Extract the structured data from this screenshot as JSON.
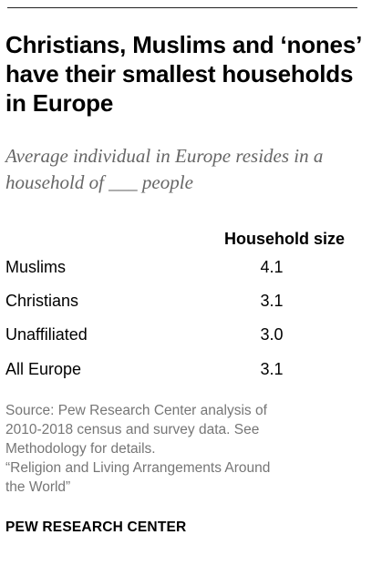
{
  "title": "Christians, Muslims and ‘nones’ have their smallest households in Europe",
  "subtitle": "Average individual in Europe resides in a household of ___ people",
  "chart_data": {
    "type": "table",
    "title": "Christians, Muslims and ‘nones’ have their smallest households in Europe",
    "subtitle": "Average individual in Europe resides in a household of ___ people",
    "column_header": "Household size",
    "rows": [
      {
        "label": "Muslims",
        "value": "4.1"
      },
      {
        "label": "Christians",
        "value": "3.1"
      },
      {
        "label": "Unaffiliated",
        "value": "3.0"
      },
      {
        "label": "All Europe",
        "value": "3.1"
      }
    ]
  },
  "source_lines": [
    "Source: Pew Research Center analysis of",
    "2010-2018 census and survey data. See",
    "Methodology for details.",
    "“Religion and Living Arrangements Around",
    "the World”"
  ],
  "brand": "PEW RESEARCH CENTER",
  "colors": {
    "text": "#000000",
    "subtitle": "#666666",
    "note": "#767676",
    "rule": "#222222"
  }
}
